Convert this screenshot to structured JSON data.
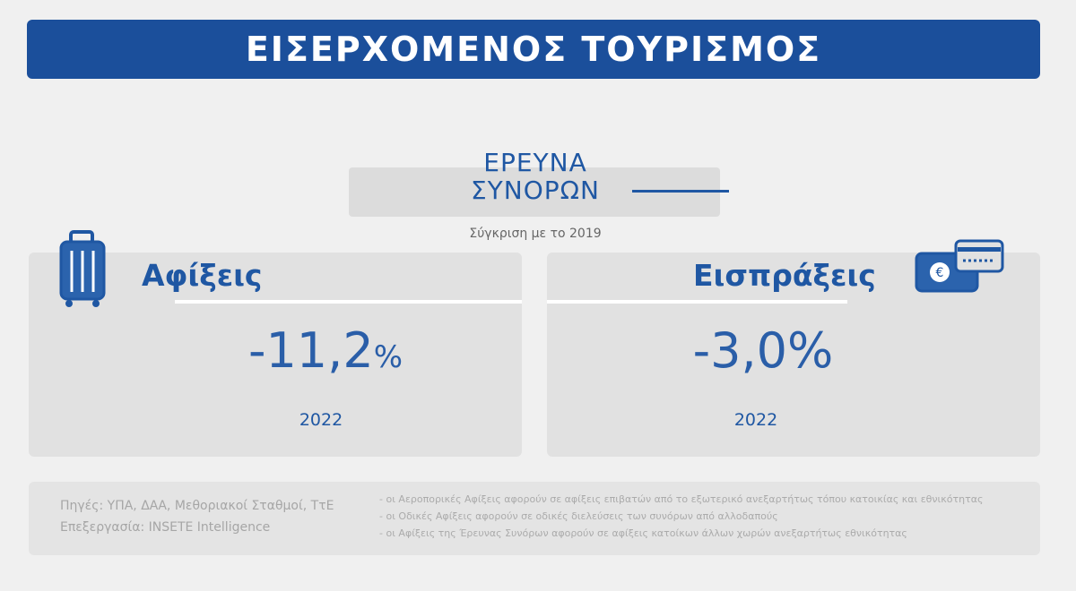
{
  "header": {
    "title": "ΕΙΣΕΡΧΟΜΕΝΟΣ ΤΟΥΡΙΣΜΟΣ"
  },
  "section": {
    "title_lines": [
      "ΕΡΕΥΝΑ",
      "ΣΥΝΟΡΩΝ"
    ],
    "subtitle": "Σύγκριση με το 2019"
  },
  "cards": [
    {
      "label": "Αφίξεις",
      "value": "-11,2",
      "unit": "%",
      "year": "2022"
    },
    {
      "label": "Εισπράξεις",
      "value": "-3,0",
      "unit": "%",
      "year": "2022"
    }
  ],
  "footer": {
    "sources": [
      "Πηγές:  ΥΠΑ, ΔΑΑ, Μεθοριακοί Σταθμοί, ΤτΕ",
      "Επεξεργασία:  INSETE Intelligence"
    ],
    "notes": [
      "- οι Αεροπορικές Αφίξεις αφορούν σε αφίξεις επιβατών από το εξωτερικό ανεξαρτήτως τόπου κατοικίας και εθνικότητας",
      "- οι Οδικές Αφίξεις αφορούν σε οδικές διελεύσεις των συνόρων από αλλοδαπούς",
      "- οι Αφίξεις της Έρευνας Συνόρων αφορούν σε αφίξεις κατοίκων άλλων χωρών ανεξαρτήτως εθνικότητας"
    ]
  }
}
